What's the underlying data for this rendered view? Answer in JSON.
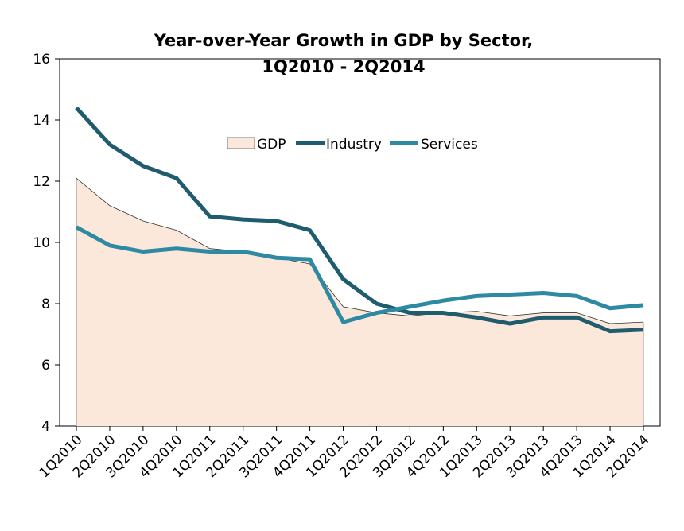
{
  "chart_data": {
    "type": "line",
    "title": "Year-over-Year Growth in GDP by Sector,",
    "subtitle": "1Q2010 - 2Q2014",
    "xlabel": "",
    "ylabel": "",
    "ylim": [
      4,
      16
    ],
    "yticks": [
      "4",
      "6",
      "8",
      "10",
      "12",
      "14",
      "16"
    ],
    "grid": false,
    "legend": "top-center",
    "categories": [
      "1Q2010",
      "2Q2010",
      "3Q2010",
      "4Q2010",
      "1Q2011",
      "2Q2011",
      "3Q2011",
      "4Q2011",
      "1Q2012",
      "2Q2012",
      "3Q2012",
      "4Q2012",
      "1Q2013",
      "2Q2013",
      "3Q2013",
      "4Q2013",
      "1Q2014",
      "2Q2014"
    ],
    "series": [
      {
        "name": "GDP",
        "style": "area",
        "color": "#fce8da",
        "values": [
          12.1,
          11.2,
          10.7,
          10.4,
          9.8,
          9.7,
          9.5,
          9.3,
          7.9,
          7.7,
          7.6,
          7.7,
          7.75,
          7.6,
          7.7,
          7.7,
          7.35,
          7.4
        ]
      },
      {
        "name": "Industry",
        "style": "line",
        "color": "#1f5c6e",
        "values": [
          14.4,
          13.2,
          12.5,
          12.1,
          10.85,
          10.75,
          10.7,
          10.4,
          8.8,
          8.0,
          7.7,
          7.7,
          7.55,
          7.35,
          7.55,
          7.55,
          7.1,
          7.15
        ]
      },
      {
        "name": "Services",
        "style": "line",
        "color": "#2e8aa3",
        "values": [
          10.5,
          9.9,
          9.7,
          9.8,
          9.7,
          9.7,
          9.5,
          9.45,
          7.4,
          7.7,
          7.9,
          8.1,
          8.25,
          8.3,
          8.35,
          8.25,
          7.85,
          7.95
        ]
      }
    ]
  }
}
